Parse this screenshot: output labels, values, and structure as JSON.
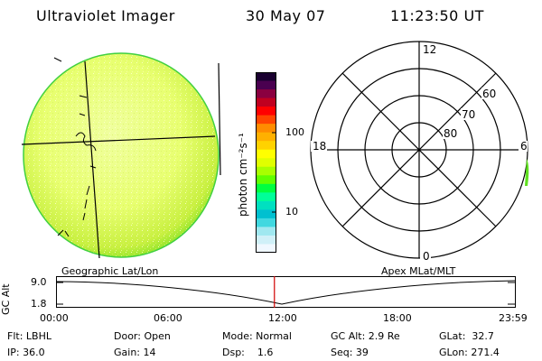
{
  "header": {
    "title": "Ultraviolet Imager",
    "date": "30 May 07",
    "time": "11:23:50 UT"
  },
  "colorbar": {
    "unit_label": "photon cm⁻²s⁻¹",
    "tick_100": "100",
    "tick_10": "10",
    "colors": [
      "#1a0030",
      "#4a0050",
      "#8a0040",
      "#c00020",
      "#ff0000",
      "#ff4500",
      "#ff8c00",
      "#ffb000",
      "#ffd200",
      "#ffff00",
      "#e0ff00",
      "#a8ff00",
      "#60ff00",
      "#00ff40",
      "#00ff99",
      "#00e0c0",
      "#00c0d0",
      "#40d8e0",
      "#a0e8f0",
      "#d0f0f8",
      "#f0f8ff"
    ]
  },
  "polar": {
    "label_top": "12",
    "label_bottom": "0",
    "label_left": "18",
    "label_right": "6",
    "ring_60": "60",
    "ring_70": "70",
    "ring_80": "80"
  },
  "panel": {
    "left_label": "Geographic Lat/Lon",
    "right_label": "Apex MLat/MLT",
    "y_axis_label": "GC Alt",
    "y_tick_top": "9.0",
    "y_tick_bottom": "1.8",
    "x_ticks": [
      "00:00",
      "06:00",
      "12:00",
      "18:00",
      "23:59"
    ],
    "cursor_time_fraction": 0.475
  },
  "info": {
    "row1": {
      "flt": "Flt: LBHL",
      "door": "Door: Open",
      "mode": "Mode: Normal",
      "gcalt": "GC Alt: 2.9 Re",
      "glat": "GLat:  32.7"
    },
    "row2": {
      "ip": "IP: 36.0",
      "gain": "Gain: 14",
      "dsp": "Dsp:    1.6",
      "seq": "Seq: 39",
      "glon": "GLon: 271.4"
    }
  }
}
